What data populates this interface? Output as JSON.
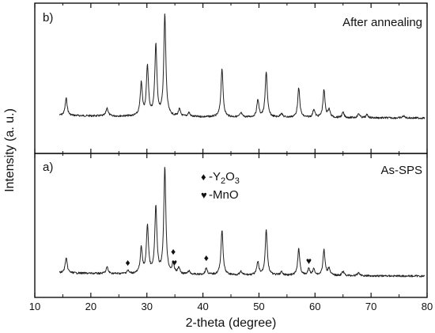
{
  "chart_data": {
    "type": "line",
    "xlabel": "2-theta (degree)",
    "ylabel": "Intensity (a. u.)",
    "xlim": [
      10,
      80
    ],
    "x_ticks": [
      "10",
      "20",
      "30",
      "40",
      "50",
      "60",
      "70",
      "80"
    ],
    "grid": false,
    "panels": [
      {
        "label": "b)",
        "title": "After annealing",
        "position": "top",
        "peaks": [
          {
            "x": 15.6,
            "y": 0.17
          },
          {
            "x": 22.9,
            "y": 0.08
          },
          {
            "x": 29.0,
            "y": 0.32
          },
          {
            "x": 30.1,
            "y": 0.49
          },
          {
            "x": 31.6,
            "y": 0.7
          },
          {
            "x": 33.2,
            "y": 1.0
          },
          {
            "x": 35.8,
            "y": 0.07
          },
          {
            "x": 37.5,
            "y": 0.04
          },
          {
            "x": 43.4,
            "y": 0.48
          },
          {
            "x": 46.8,
            "y": 0.04
          },
          {
            "x": 49.8,
            "y": 0.17
          },
          {
            "x": 51.3,
            "y": 0.45
          },
          {
            "x": 54.0,
            "y": 0.04
          },
          {
            "x": 57.1,
            "y": 0.29
          },
          {
            "x": 59.8,
            "y": 0.08
          },
          {
            "x": 61.6,
            "y": 0.27
          },
          {
            "x": 62.5,
            "y": 0.08
          },
          {
            "x": 65.0,
            "y": 0.05
          },
          {
            "x": 67.8,
            "y": 0.04
          },
          {
            "x": 69.3,
            "y": 0.03
          },
          {
            "x": 75.8,
            "y": 0.02
          }
        ]
      },
      {
        "label": "a)",
        "title": "As-SPS",
        "position": "bottom",
        "peaks": [
          {
            "x": 15.6,
            "y": 0.14
          },
          {
            "x": 22.9,
            "y": 0.06
          },
          {
            "x": 26.6,
            "y": 0.03
          },
          {
            "x": 29.0,
            "y": 0.24
          },
          {
            "x": 30.1,
            "y": 0.45
          },
          {
            "x": 31.6,
            "y": 0.63
          },
          {
            "x": 33.2,
            "y": 1.0
          },
          {
            "x": 34.7,
            "y": 0.09
          },
          {
            "x": 35.7,
            "y": 0.06
          },
          {
            "x": 37.5,
            "y": 0.03
          },
          {
            "x": 40.6,
            "y": 0.06
          },
          {
            "x": 43.4,
            "y": 0.42
          },
          {
            "x": 46.8,
            "y": 0.03
          },
          {
            "x": 49.8,
            "y": 0.12
          },
          {
            "x": 51.3,
            "y": 0.43
          },
          {
            "x": 54.0,
            "y": 0.03
          },
          {
            "x": 57.1,
            "y": 0.25
          },
          {
            "x": 58.9,
            "y": 0.06
          },
          {
            "x": 59.8,
            "y": 0.06
          },
          {
            "x": 61.6,
            "y": 0.24
          },
          {
            "x": 62.5,
            "y": 0.07
          },
          {
            "x": 65.0,
            "y": 0.04
          },
          {
            "x": 67.8,
            "y": 0.03
          }
        ],
        "markers": [
          {
            "phase": "Y2O3",
            "symbol": "♦",
            "x": 26.6
          },
          {
            "phase": "Y2O3",
            "symbol": "♦",
            "x": 34.7
          },
          {
            "phase": "MnO",
            "symbol": "♥",
            "x": 34.9
          },
          {
            "phase": "Y2O3",
            "symbol": "♦",
            "x": 40.6
          },
          {
            "phase": "MnO",
            "symbol": "♥",
            "x": 58.9
          }
        ]
      }
    ],
    "legend": [
      {
        "symbol": "♦",
        "text": "-Y",
        "sub1": "2",
        "mid": "O",
        "sub2": "3"
      },
      {
        "symbol": "♥",
        "text": "-MnO"
      }
    ]
  }
}
